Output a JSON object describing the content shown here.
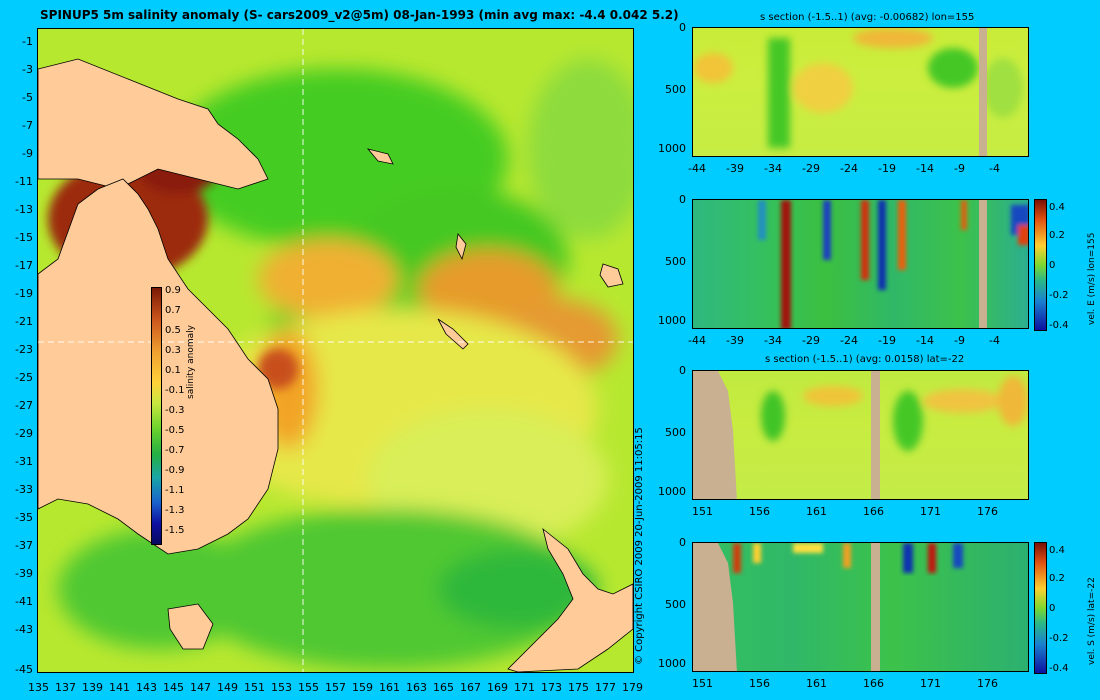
{
  "map": {
    "title": "SPINUP5 5m salinity anomaly  (S- cars2009_v2@5m) 08-Jan-1993  (min avg max: -4.4 0.042 5.2)",
    "lat_labels": [
      "-1",
      "-3",
      "-5",
      "-7",
      "-9",
      "-11",
      "-13",
      "-15",
      "-17",
      "-19",
      "-21",
      "-23",
      "-25",
      "-27",
      "-29",
      "-31",
      "-33",
      "-35",
      "-37",
      "-39",
      "-41",
      "-43",
      "-45"
    ],
    "lon_labels": [
      "135",
      "137",
      "139",
      "141",
      "143",
      "145",
      "147",
      "149",
      "151",
      "153",
      "155",
      "157",
      "159",
      "161",
      "163",
      "165",
      "167",
      "169",
      "171",
      "173",
      "175",
      "177",
      "179"
    ],
    "colorbar": {
      "label": "salinity anomaly",
      "ticks": [
        "0.9",
        "0.7",
        "0.5",
        "0.3",
        "0.1",
        "-0.1",
        "-0.3",
        "-0.5",
        "-0.7",
        "-0.9",
        "-1.1",
        "-1.3",
        "-1.5"
      ]
    },
    "copyright": "© Copyright CSIRO 2009   20-Jun-2009 11:05:15"
  },
  "panels": [
    {
      "title": "s section (-1.5..1) (avg: -0.00682) lon=155",
      "y_labels": [
        "0",
        "500",
        "1000"
      ],
      "x_labels": [
        "-44",
        "-39",
        "-34",
        "-29",
        "-24",
        "-19",
        "-14",
        "-9",
        "-4"
      ],
      "side_label": ""
    },
    {
      "title": "",
      "y_labels": [
        "0",
        "500",
        "1000"
      ],
      "x_labels": [
        "-44",
        "-39",
        "-34",
        "-29",
        "-24",
        "-19",
        "-14",
        "-9",
        "-4"
      ],
      "side_label": "vel. E (m/s) lon=155",
      "colorbar_ticks": [
        "0.4",
        "0.2",
        "0",
        "-0.2",
        "-0.4"
      ]
    },
    {
      "title": "s section (-1.5..1) (avg: 0.0158) lat=-22",
      "y_labels": [
        "0",
        "500",
        "1000"
      ],
      "x_labels": [
        "151",
        "156",
        "161",
        "166",
        "171",
        "176"
      ],
      "side_label": ""
    },
    {
      "title": "",
      "y_labels": [
        "0",
        "500",
        "1000"
      ],
      "x_labels": [
        "151",
        "156",
        "161",
        "166",
        "171",
        "176"
      ],
      "side_label": "vel. S (m/s) lat=-22",
      "colorbar_ticks": [
        "0.4",
        "0.2",
        "0",
        "-0.2",
        "-0.4"
      ]
    }
  ]
}
